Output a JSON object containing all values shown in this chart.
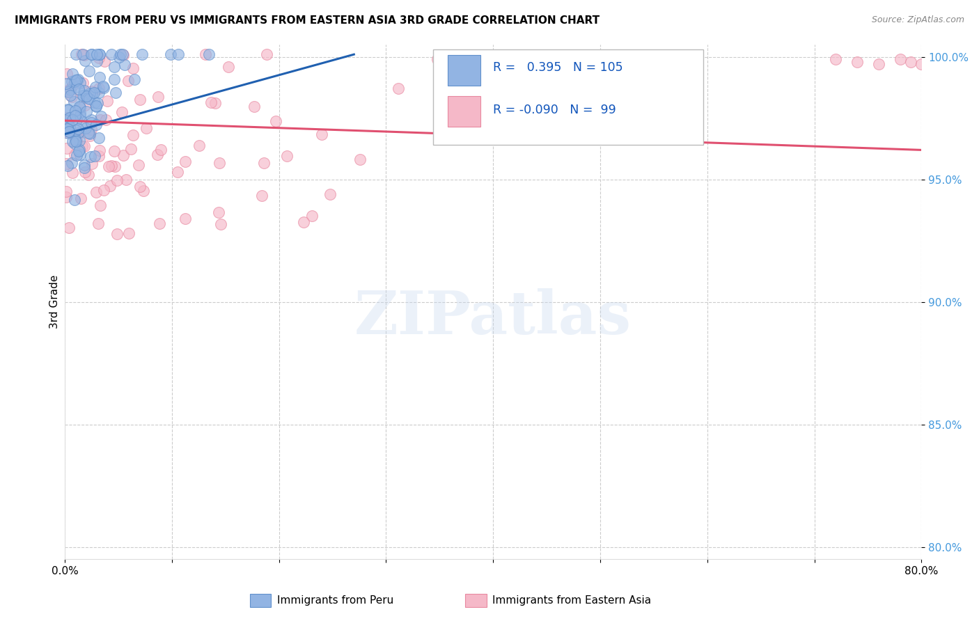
{
  "title": "IMMIGRANTS FROM PERU VS IMMIGRANTS FROM EASTERN ASIA 3RD GRADE CORRELATION CHART",
  "source": "Source: ZipAtlas.com",
  "ylabel": "3rd Grade",
  "xlim": [
    0.0,
    0.8
  ],
  "ylim": [
    0.795,
    1.005
  ],
  "xticks": [
    0.0,
    0.1,
    0.2,
    0.3,
    0.4,
    0.5,
    0.6,
    0.7,
    0.8
  ],
  "xticklabels": [
    "0.0%",
    "",
    "",
    "",
    "",
    "",
    "",
    "",
    "80.0%"
  ],
  "yticks": [
    0.8,
    0.85,
    0.9,
    0.95,
    1.0
  ],
  "yticklabels": [
    "80.0%",
    "85.0%",
    "90.0%",
    "95.0%",
    "100.0%"
  ],
  "peru_color": "#92b4e3",
  "peru_edge": "#6090cc",
  "ea_color": "#f5b8c8",
  "ea_edge": "#e888a0",
  "blue_line_color": "#2060b0",
  "pink_line_color": "#e05070",
  "R_peru": 0.395,
  "N_peru": 105,
  "R_ea": -0.09,
  "N_ea": 99,
  "legend_label_peru": "Immigrants from Peru",
  "legend_label_ea": "Immigrants from Eastern Asia",
  "watermark": "ZIPatlas",
  "grid_color": "#cccccc",
  "grid_style": "--",
  "background_color": "#ffffff",
  "blue_line_x0": 0.0,
  "blue_line_y0": 0.9685,
  "blue_line_x1": 0.27,
  "blue_line_y1": 1.001,
  "pink_line_x0": 0.0,
  "pink_line_y0": 0.974,
  "pink_line_x1": 0.8,
  "pink_line_y1": 0.962
}
